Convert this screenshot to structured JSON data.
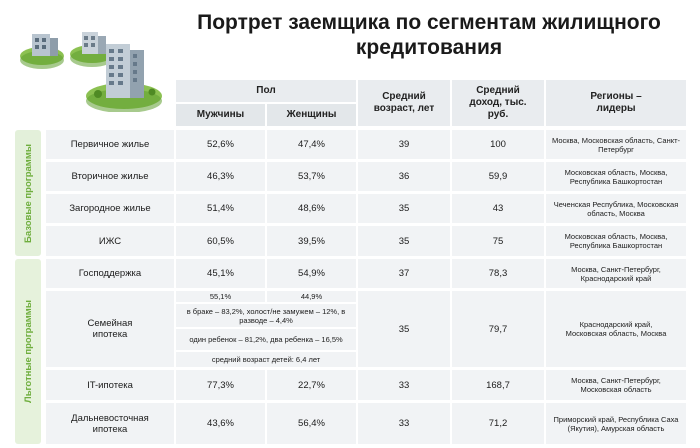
{
  "title": "Портрет заемщика по сегментам жилищного кредитования",
  "headers": {
    "gender": "Пол",
    "male": "Мужчины",
    "female": "Женщины",
    "age": "Средний возраст, лет",
    "income": "Средний доход, тыс. руб.",
    "regions": "Регионы – лидеры"
  },
  "sections": {
    "base": "Базовые программы",
    "preferential": "Льготные программы"
  },
  "rows": [
    {
      "name": "Первичное жилье",
      "male": "52,6%",
      "female": "47,4%",
      "age": "39",
      "income": "100",
      "regions": "Москва, Московская область, Санкт-Петербург"
    },
    {
      "name": "Вторичное жилье",
      "male": "46,3%",
      "female": "53,7%",
      "age": "36",
      "income": "59,9",
      "regions": "Московская область, Москва, Республика Башкортостан"
    },
    {
      "name": "Загородное жилье",
      "male": "51,4%",
      "female": "48,6%",
      "age": "35",
      "income": "43",
      "regions": "Чеченская Республика, Московская область, Москва"
    },
    {
      "name": "ИЖС",
      "male": "60,5%",
      "female": "39,5%",
      "age": "35",
      "income": "75",
      "regions": "Московская область, Москва, Республика Башкортостан"
    },
    {
      "name": "Господдержка",
      "male": "45,1%",
      "female": "54,9%",
      "age": "37",
      "income": "78,3",
      "regions": "Москва, Санкт-Петербург, Краснодарский край"
    },
    {
      "name": "Семейная ипотека",
      "male": "55,1%",
      "female": "44,9%",
      "age": "35",
      "income": "79,7",
      "regions": "Краснодарский край, Московская область, Москва",
      "marital": "в браке – 83,2%, холост/не замужем – 12%, в разводе – 4,4%",
      "children": "один ребенок – 81,2%, два ребенка – 16,5%",
      "child_age": "средний возраст детей: 6,4 лет"
    },
    {
      "name": "IT-ипотека",
      "male": "77,3%",
      "female": "22,7%",
      "age": "33",
      "income": "168,7",
      "regions": "Москва, Санкт-Петербург, Московская область"
    },
    {
      "name": "Дальневосточная ипотека",
      "male": "43,6%",
      "female": "56,4%",
      "age": "33",
      "income": "71,2",
      "regions": "Приморский край, Республика Саха (Якутия), Амурская область"
    }
  ],
  "colors": {
    "accent_green": "#6fae3e",
    "cell_bg": "#f1f3f5",
    "header_bg": "#e9ecef"
  }
}
